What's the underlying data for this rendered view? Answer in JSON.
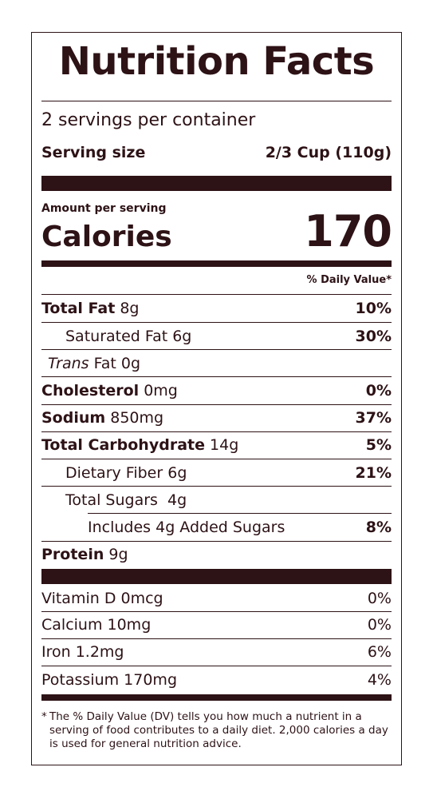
{
  "title": "Nutrition Facts",
  "servings_per_container": "2 servings per container",
  "serving_size": {
    "label": "Serving size",
    "value": "2/3 Cup (110g)"
  },
  "amount_per_serving": "Amount per serving",
  "calories": {
    "label": "Calories",
    "value": "170"
  },
  "daily_value_header": "% Daily Value*",
  "nutrients": [
    {
      "name": "Total Fat",
      "amount": "8g",
      "dv": "10%"
    },
    {
      "name": "Saturated Fat",
      "amount": "6g",
      "dv": "30%"
    },
    {
      "name_prefix_italic": "Trans",
      "name": "Fat",
      "amount": "0g",
      "dv": ""
    },
    {
      "name": "Cholesterol",
      "amount": "0mg",
      "dv": "0%"
    },
    {
      "name": "Sodium",
      "amount": "850mg",
      "dv": "37%"
    },
    {
      "name": "Total Carbohydrate",
      "amount": "14g",
      "dv": "5%"
    },
    {
      "name": "Dietary Fiber",
      "amount": "6g",
      "dv": "21%"
    },
    {
      "name": "Total Sugars",
      "amount": "4g",
      "dv": ""
    },
    {
      "name": "Includes 4g Added Sugars",
      "amount": "",
      "dv": "8%"
    },
    {
      "name": "Protein",
      "amount": "9g",
      "dv": ""
    }
  ],
  "vitamins": [
    {
      "name": "Vitamin D 0mcg",
      "dv": "0%"
    },
    {
      "name": "Calcium 10mg",
      "dv": "0%"
    },
    {
      "name": "Iron 1.2mg",
      "dv": "6%"
    },
    {
      "name": "Potassium 170mg",
      "dv": "4%"
    }
  ],
  "footnote": {
    "star": "*",
    "text": "The % Daily Value (DV) tells you how much a nutrient in a serving of food contributes to a daily diet. 2,000 calories a day is used for general nutrition advice."
  },
  "colors": {
    "ink": "#2d1216",
    "background": "#ffffff"
  }
}
